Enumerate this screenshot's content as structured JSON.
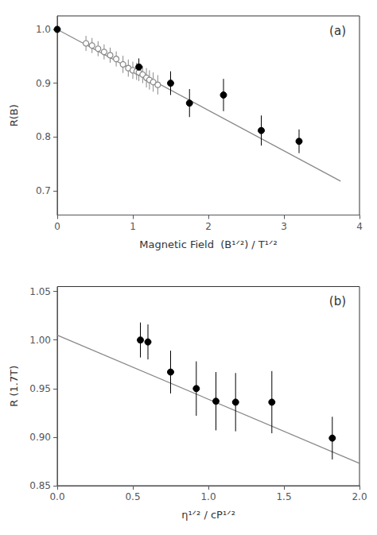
{
  "chart_data": [
    {
      "type": "scatter",
      "title": "(a)",
      "xlabel": "Magnetic Field  (B¹ᐟ²) / T¹ᐟ²",
      "ylabel": "R(B)",
      "xlim": [
        0,
        4
      ],
      "ylim": [
        0.655,
        1.025
      ],
      "xticks": [
        0,
        1,
        2,
        3,
        4
      ],
      "yticks": [
        0.7,
        0.8,
        0.9,
        {
          "value": 1.0,
          "label": "1.0"
        }
      ],
      "grid": false,
      "series": [
        {
          "type": "line",
          "color": "#888888",
          "x": [
            0.0,
            3.75
          ],
          "values": [
            1.0,
            0.718
          ]
        },
        {
          "type": "scatter",
          "marker": "circle_open",
          "color": "#888888",
          "x": [
            0.38,
            0.46,
            0.54,
            0.62,
            0.7,
            0.78,
            0.87,
            0.94,
            1.0,
            1.05,
            1.08,
            1.13,
            1.18,
            1.22,
            1.27,
            1.33
          ],
          "values": [
            0.974,
            0.97,
            0.964,
            0.958,
            0.952,
            0.945,
            0.935,
            0.928,
            0.924,
            0.922,
            0.92,
            0.916,
            0.91,
            0.906,
            0.902,
            0.897
          ],
          "yerr": [
            0.014,
            0.014,
            0.014,
            0.014,
            0.014,
            0.014,
            0.016,
            0.016,
            0.016,
            0.016,
            0.016,
            0.016,
            0.018,
            0.018,
            0.018,
            0.018
          ]
        },
        {
          "type": "scatter",
          "marker": "circle",
          "color": "#000000",
          "x": [
            0.0,
            1.08,
            1.5,
            1.75,
            2.2,
            2.7,
            3.2
          ],
          "values": [
            1.0,
            0.93,
            0.9,
            0.863,
            0.878,
            0.812,
            0.792
          ],
          "yerr": [
            0.004,
            0.016,
            0.022,
            0.026,
            0.03,
            0.028,
            0.022
          ]
        }
      ]
    },
    {
      "type": "scatter",
      "title": "(b)",
      "xlabel": "η¹ᐟ² / cP¹ᐟ²",
      "ylabel": "R (1.7T)",
      "xlim": [
        0,
        2
      ],
      "ylim": [
        0.85,
        1.055
      ],
      "xticks": [
        {
          "value": 0,
          "label": "0.0"
        },
        0.5,
        {
          "value": 1.0,
          "label": "1.0"
        },
        1.5,
        {
          "value": 2.0,
          "label": "2.0"
        }
      ],
      "yticks": [
        0.85,
        {
          "value": 0.9,
          "label": "0.90"
        },
        0.95,
        {
          "value": 1.0,
          "label": "1.00"
        },
        1.05
      ],
      "grid": false,
      "series": [
        {
          "type": "line",
          "color": "#888888",
          "x": [
            0.0,
            2.0
          ],
          "values": [
            1.005,
            0.873
          ]
        },
        {
          "type": "scatter",
          "marker": "circle",
          "color": "#000000",
          "x": [
            0.55,
            0.6,
            0.75,
            0.92,
            1.05,
            1.18,
            1.42,
            1.82
          ],
          "values": [
            1.0,
            0.998,
            0.967,
            0.95,
            0.937,
            0.936,
            0.936,
            0.899
          ],
          "yerr": [
            0.018,
            0.018,
            0.022,
            0.028,
            0.03,
            0.03,
            0.032,
            0.022
          ]
        }
      ]
    }
  ]
}
